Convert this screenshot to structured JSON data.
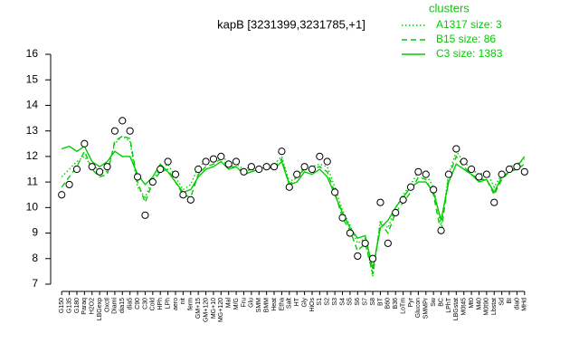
{
  "chart_data": {
    "type": "line",
    "title": "kapB [3231399,3231785,+1]",
    "legend_title": "clusters",
    "categories": [
      "G150",
      "G135",
      "G180",
      "Paraq",
      "H2O2",
      "LBGexp",
      "Oxctl",
      "Diami",
      "dia15",
      "dia5",
      "C90",
      "C30",
      "Cold",
      "HPh",
      "LPh",
      "aero",
      "nit",
      "ferm",
      "GM+15",
      "GM+120",
      "MG+10",
      "MG+120",
      "Mal",
      "M/G",
      "Fru",
      "Glu",
      "SMM",
      "BMM",
      "Heat",
      "Etha",
      "Salt",
      "HT",
      "Gly",
      "HiOs",
      "S1",
      "S2",
      "S3",
      "S4",
      "S5",
      "S6",
      "S7",
      "S8",
      "BT",
      "B60",
      "B36",
      "LoTm",
      "Pyr",
      "Glucon",
      "SMMPr",
      "Sw",
      "BC",
      "LPhT",
      "LBGstat",
      "M0t45",
      "Mt0",
      "M40",
      "M0t90",
      "Lbstat",
      "Sd",
      "BI",
      "dia0",
      "MHd"
    ],
    "series": [
      {
        "name": "A1317 size: 3",
        "color": "#00cc00",
        "dash": "dotted",
        "values": [
          11.2,
          11.5,
          11.8,
          12.0,
          11.6,
          11.5,
          11.4,
          12.5,
          12.8,
          12.6,
          10.8,
          10.4,
          11.1,
          11.5,
          11.7,
          11.2,
          10.7,
          10.9,
          11.6,
          11.8,
          11.9,
          12.0,
          11.8,
          11.7,
          11.5,
          11.6,
          11.5,
          11.6,
          11.7,
          12.0,
          11.0,
          11.2,
          11.6,
          11.6,
          11.7,
          11.6,
          10.8,
          9.9,
          9.3,
          8.6,
          8.8,
          7.3,
          9.5,
          9.2,
          10.0,
          10.5,
          10.9,
          11.4,
          11.3,
          10.8,
          9.3,
          11.3,
          12.2,
          11.8,
          11.5,
          11.3,
          11.4,
          10.8,
          11.3,
          11.6,
          11.7,
          11.9
        ]
      },
      {
        "name": "B15 size: 86",
        "color": "#00cc00",
        "dash": "dashed",
        "values": [
          10.8,
          11.2,
          11.6,
          12.2,
          11.5,
          11.2,
          11.3,
          12.6,
          12.8,
          12.7,
          11.0,
          10.2,
          11.0,
          11.4,
          11.5,
          11.0,
          10.5,
          10.4,
          11.3,
          11.6,
          11.7,
          11.9,
          11.6,
          11.6,
          11.4,
          11.5,
          11.4,
          11.5,
          11.6,
          11.9,
          10.9,
          11.2,
          11.5,
          11.5,
          11.6,
          11.4,
          10.6,
          9.6,
          9.1,
          8.3,
          8.6,
          7.4,
          9.4,
          9.0,
          9.8,
          10.2,
          10.6,
          11.2,
          11.1,
          10.5,
          9.0,
          11.2,
          12.0,
          11.6,
          11.3,
          11.1,
          11.1,
          10.5,
          11.1,
          11.4,
          11.5,
          11.7
        ]
      },
      {
        "name": "C3 size: 1383",
        "color": "#00cc00",
        "dash": "solid",
        "values": [
          12.3,
          12.4,
          12.2,
          12.4,
          11.8,
          11.6,
          11.8,
          12.2,
          12.0,
          12.0,
          11.3,
          10.9,
          11.2,
          11.7,
          11.4,
          11.0,
          10.6,
          10.7,
          11.2,
          11.5,
          11.6,
          11.8,
          11.5,
          11.6,
          11.3,
          11.4,
          11.5,
          11.6,
          11.5,
          11.8,
          10.9,
          11.0,
          11.4,
          11.3,
          11.5,
          11.2,
          10.5,
          9.8,
          9.2,
          8.8,
          8.9,
          7.6,
          9.2,
          9.5,
          10.0,
          10.4,
          10.8,
          11.0,
          11.0,
          10.6,
          9.5,
          11.0,
          11.7,
          11.5,
          11.3,
          11.0,
          11.1,
          10.6,
          11.2,
          11.4,
          11.6,
          12.0
        ]
      },
      {
        "color": "#000000",
        "marker": "circle",
        "values": [
          10.5,
          10.9,
          11.5,
          12.5,
          11.6,
          11.4,
          11.6,
          13.0,
          13.4,
          13.0,
          11.2,
          9.7,
          11.0,
          11.5,
          11.8,
          11.3,
          10.5,
          10.3,
          11.5,
          11.8,
          11.9,
          12.0,
          11.7,
          11.8,
          11.4,
          11.6,
          11.5,
          11.6,
          11.6,
          12.2,
          10.8,
          11.3,
          11.6,
          11.5,
          12.0,
          11.8,
          10.6,
          9.6,
          9.0,
          8.1,
          8.6,
          8.0,
          10.2,
          8.6,
          9.8,
          10.3,
          10.8,
          11.4,
          11.3,
          10.7,
          9.1,
          11.3,
          12.3,
          11.8,
          11.5,
          11.2,
          11.3,
          10.2,
          11.3,
          11.5,
          11.6,
          11.4
        ]
      }
    ],
    "ylim": [
      7,
      16
    ],
    "yticks": [
      7,
      8,
      9,
      10,
      11,
      12,
      13,
      14,
      15,
      16
    ]
  }
}
